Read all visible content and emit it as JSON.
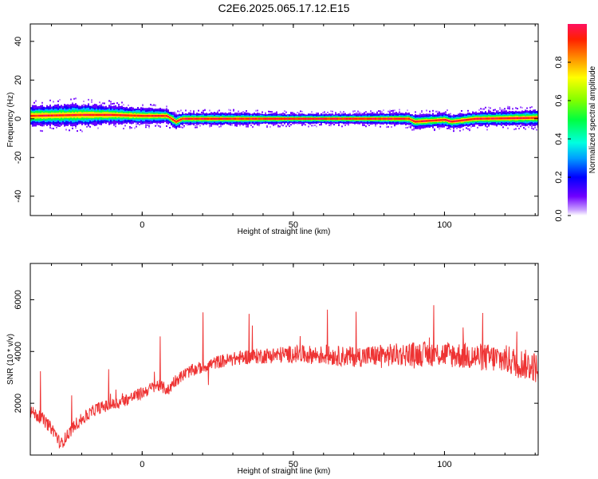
{
  "title": "C2E6.2025.065.17.12.E15",
  "chart_data": [
    {
      "type": "heatmap",
      "xlabel": "Height of straight line (km)",
      "ylabel": "Frequency (Hz)",
      "xlim": [
        -37,
        131
      ],
      "ylim": [
        -50,
        49
      ],
      "xticks": [
        0,
        50,
        100
      ],
      "yticks": [
        40,
        20,
        0,
        -20,
        -40
      ],
      "xtick_labels": [
        "0",
        "50",
        "100"
      ],
      "ytick_labels": [
        "40",
        "20",
        "0",
        "-20",
        "-40"
      ],
      "colorbar": {
        "label": "Normalized spectral amplitude",
        "range": [
          0,
          1
        ],
        "ticks": [
          0.0,
          0.2,
          0.4,
          0.6,
          0.8
        ],
        "tick_labels": [
          "0.0",
          "0.2",
          "0.4",
          "0.6",
          "0.8"
        ]
      },
      "ridge": {
        "x": [
          -37,
          -20,
          -10,
          0,
          8,
          11,
          13,
          30,
          50,
          70,
          88,
          90,
          100,
          102,
          110,
          131
        ],
        "center_freq": [
          1.5,
          2.0,
          2.0,
          1.5,
          1.5,
          -1.5,
          0.0,
          0.0,
          0.0,
          0.0,
          0.0,
          -1.5,
          -0.5,
          -1.5,
          0.0,
          0.5
        ],
        "half_width_hz": [
          5.0,
          5.5,
          4.5,
          4.0,
          3.5,
          3.5,
          3.0,
          3.0,
          2.5,
          2.5,
          3.0,
          3.5,
          3.5,
          3.5,
          3.5,
          4.0
        ]
      }
    },
    {
      "type": "line",
      "xlabel": "Height of straight line (km)",
      "ylabel": "SNR (10 * v/v)",
      "xlim": [
        -37,
        131
      ],
      "ylim": [
        0,
        7400
      ],
      "xticks": [
        0,
        50,
        100
      ],
      "yticks": [
        2000,
        4000,
        6000
      ],
      "xtick_labels": [
        "0",
        "50",
        "100"
      ],
      "ytick_labels": [
        "2000",
        "4000",
        "6000"
      ],
      "color": "#ee3333",
      "trend": {
        "x": [
          -37,
          -33,
          -29,
          -27,
          -22,
          -15,
          -8,
          0,
          5,
          9,
          10,
          15,
          25,
          35,
          50,
          70,
          90,
          100,
          110,
          120,
          130,
          131
        ],
        "y": [
          1700,
          1400,
          900,
          400,
          1200,
          1800,
          2000,
          2400,
          2700,
          2500,
          2800,
          3200,
          3600,
          3800,
          3900,
          3800,
          3900,
          3900,
          3800,
          3700,
          3400,
          3300
        ]
      },
      "noise_amplitude": 600
    }
  ]
}
